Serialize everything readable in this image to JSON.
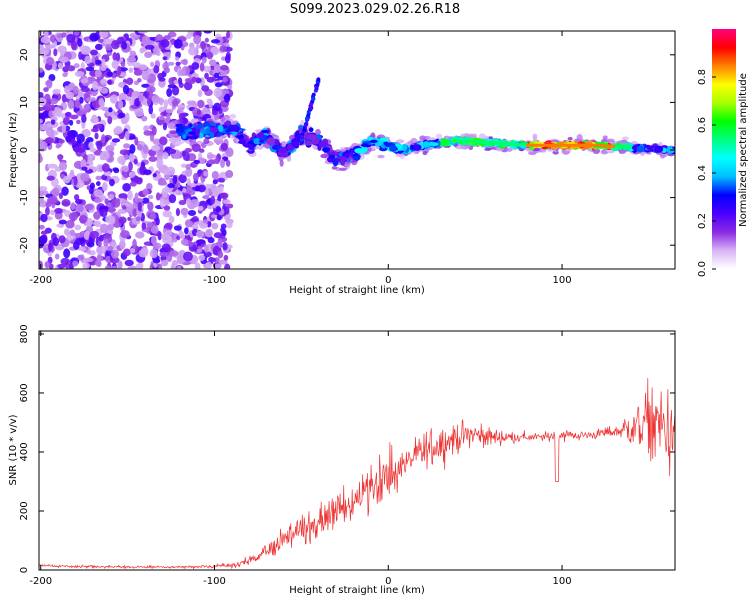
{
  "page": {
    "title": "S099.2023.029.02.26.R18"
  },
  "chart_data": [
    {
      "type": "heatmap",
      "xlabel": "Height of straight line (km)",
      "ylabel": "Frequency (Hz)",
      "xlim": [
        -201,
        165
      ],
      "ylim": [
        -25,
        25
      ],
      "x_ticks": [
        -200,
        -100,
        0,
        100
      ],
      "y_ticks": [
        -20,
        -10,
        0,
        10,
        20
      ],
      "grid": false,
      "colorbar": {
        "label": "Normalized spectral amplitude",
        "range": [
          0,
          1
        ],
        "ticks": [
          0.0,
          0.2,
          0.4,
          0.6,
          0.8
        ],
        "colormap": [
          "#ffffff",
          "#d8b4f6",
          "#8a2be2",
          "#4b00ff",
          "#0000ff",
          "#00bfff",
          "#00ffff",
          "#00ff80",
          "#00ff00",
          "#aaff00",
          "#ffff00",
          "#ff8000",
          "#ff0000",
          "#ff0080"
        ]
      },
      "ridge": {
        "description": "carrier line frequency vs height",
        "x": [
          -120,
          -100,
          -90,
          -80,
          -70,
          -60,
          -50,
          -40,
          -30,
          -20,
          -10,
          0,
          10,
          20,
          40,
          60,
          80,
          100,
          120,
          140,
          160
        ],
        "y": [
          4,
          4,
          5,
          1,
          3,
          -1,
          3,
          2,
          -2,
          -1,
          2,
          1,
          0,
          1,
          2,
          1.5,
          1,
          1,
          1,
          0.5,
          0
        ]
      },
      "peak_amplitude_region_km": [
        80,
        130
      ]
    },
    {
      "type": "line",
      "xlabel": "Height of straight line (km)",
      "ylabel": "SNR (10 * v/v)",
      "xlim": [
        -201,
        165
      ],
      "ylim": [
        0,
        810
      ],
      "x_ticks": [
        -200,
        -100,
        0,
        100
      ],
      "y_ticks": [
        0,
        200,
        400,
        600,
        800
      ],
      "grid": false,
      "series": [
        {
          "color": "#ee3333",
          "x": [
            -200,
            -180,
            -160,
            -140,
            -120,
            -100,
            -90,
            -80,
            -70,
            -60,
            -50,
            -40,
            -30,
            -20,
            -10,
            0,
            10,
            20,
            30,
            40,
            50,
            60,
            70,
            80,
            90,
            100,
            110,
            120,
            130,
            140,
            150,
            160,
            165
          ],
          "y": [
            15,
            12,
            10,
            10,
            10,
            12,
            15,
            30,
            60,
            110,
            140,
            150,
            200,
            230,
            300,
            310,
            360,
            400,
            430,
            450,
            460,
            450,
            450,
            450,
            450,
            460,
            455,
            460,
            470,
            480,
            500,
            480,
            450
          ],
          "envelope": [
            10,
            8,
            8,
            8,
            8,
            10,
            15,
            30,
            50,
            80,
            110,
            120,
            130,
            150,
            160,
            170,
            100,
            120,
            120,
            100,
            80,
            60,
            40,
            30,
            30,
            40,
            30,
            30,
            50,
            120,
            250,
            280,
            250
          ]
        }
      ]
    }
  ]
}
